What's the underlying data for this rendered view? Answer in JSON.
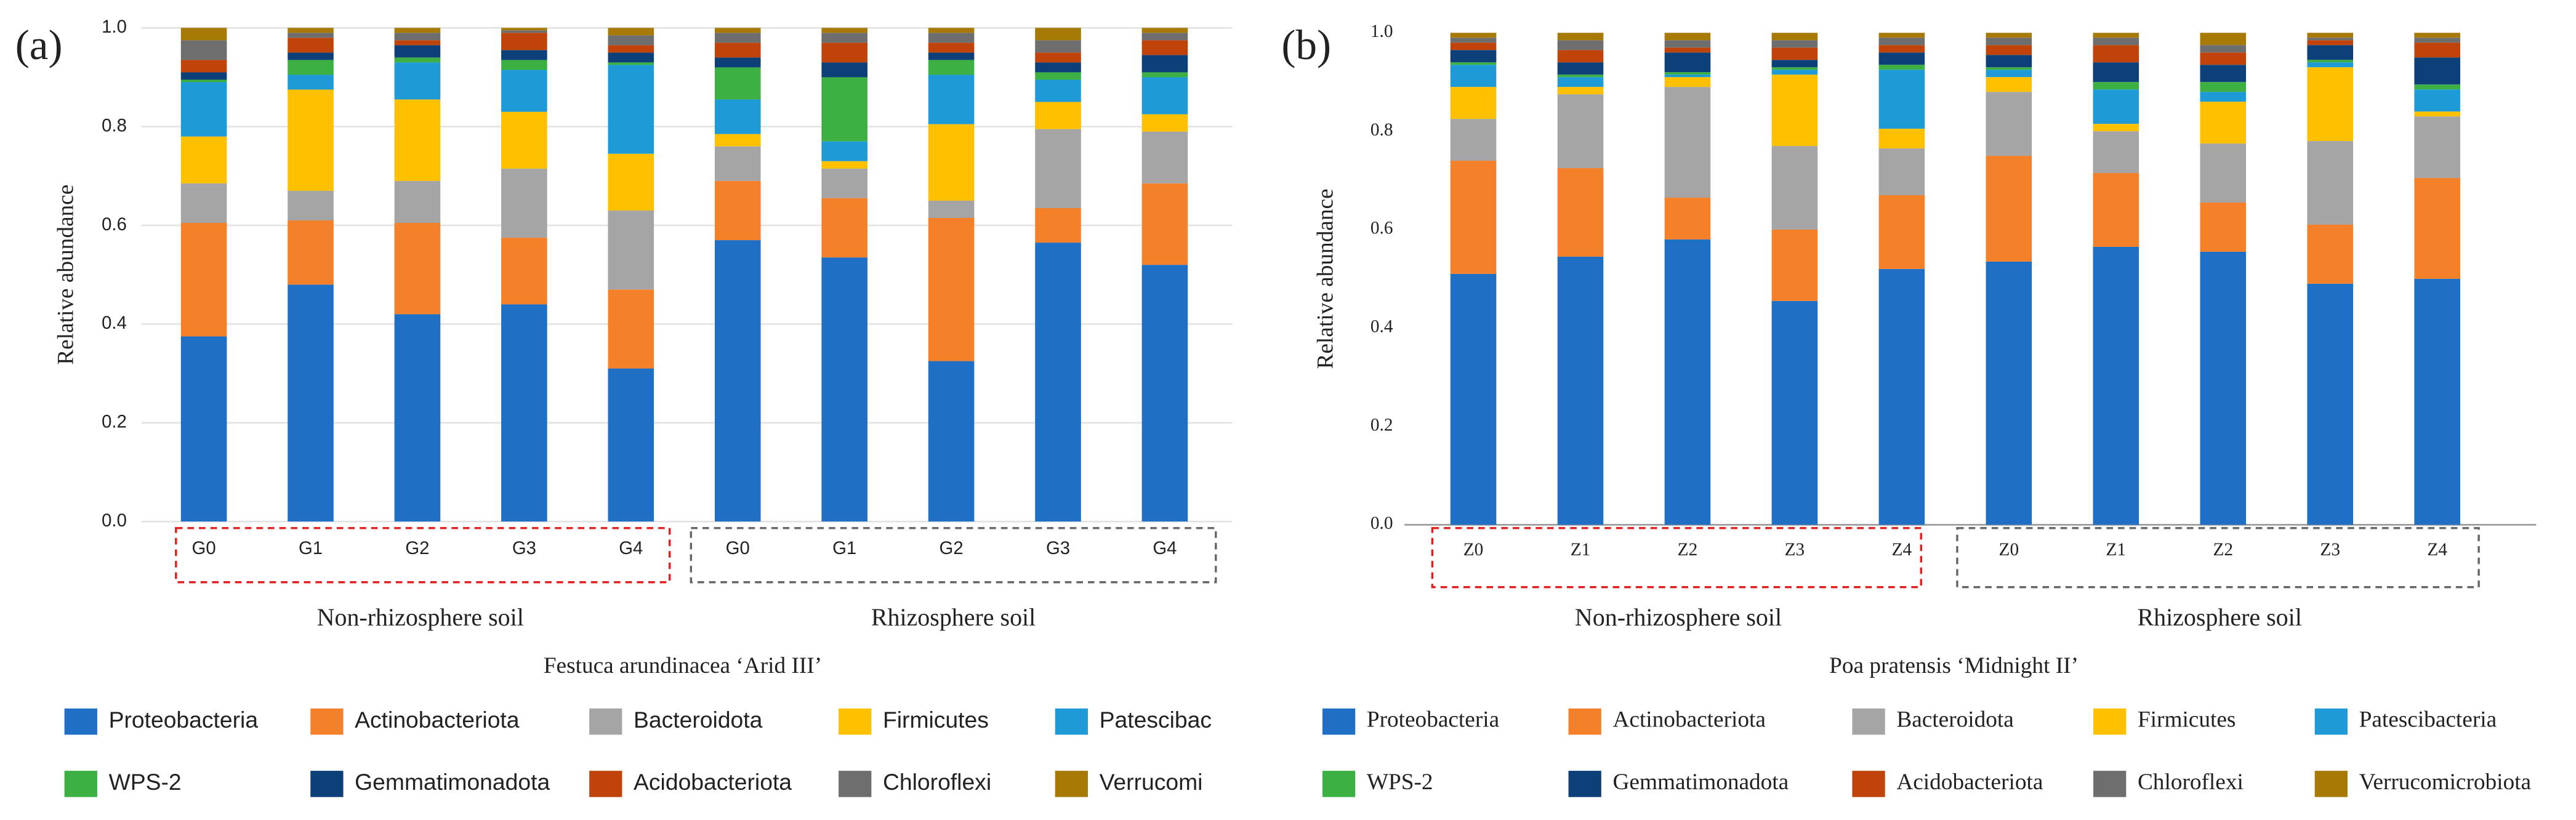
{
  "chart_data": [
    {
      "type": "bar",
      "stacked": true,
      "panel_label": "(a)",
      "y_label": "Relative abundance",
      "x_label": "Festuca arundinacea ‘Arid III’",
      "category_groups": [
        "Non-rhizosphere soil",
        "Rhizosphere soil"
      ],
      "categories": [
        "G0",
        "G1",
        "G2",
        "G3",
        "G4",
        "G0",
        "G1",
        "G2",
        "G3",
        "G4"
      ],
      "ylim": [
        0,
        1
      ],
      "yticks": [
        {
          "value": 0,
          "label": "0.0"
        },
        0.2,
        0.4,
        0.6,
        0.8,
        {
          "value": 1,
          "label": "1.0"
        }
      ],
      "grid": true,
      "series": [
        {
          "name": "Proteobacteria",
          "color": "#1f6fc5",
          "values": [
            0.375,
            0.48,
            0.42,
            0.44,
            0.31,
            0.57,
            0.535,
            0.325,
            0.565,
            0.52
          ]
        },
        {
          "name": "Actinobacteriota",
          "color": "#f4802a",
          "values": [
            0.23,
            0.13,
            0.185,
            0.135,
            0.16,
            0.12,
            0.12,
            0.29,
            0.07,
            0.165
          ]
        },
        {
          "name": "Bacteroidota",
          "color": "#a5a5a5",
          "values": [
            0.08,
            0.06,
            0.085,
            0.14,
            0.16,
            0.07,
            0.06,
            0.035,
            0.16,
            0.105
          ]
        },
        {
          "name": "Firmicutes",
          "color": "#ffc000",
          "values": [
            0.095,
            0.205,
            0.165,
            0.115,
            0.115,
            0.025,
            0.015,
            0.155,
            0.055,
            0.035
          ]
        },
        {
          "name": "Patescibac",
          "color": "#1e9bd7",
          "values": [
            0.11,
            0.03,
            0.075,
            0.085,
            0.18,
            0.07,
            0.04,
            0.1,
            0.045,
            0.075
          ]
        },
        {
          "name": "WPS-2",
          "color": "#3cb043",
          "values": [
            0.005,
            0.03,
            0.01,
            0.02,
            0.005,
            0.065,
            0.13,
            0.03,
            0.015,
            0.01
          ]
        },
        {
          "name": "Gemmatimonadota",
          "color": "#0d3f78",
          "values": [
            0.015,
            0.015,
            0.025,
            0.02,
            0.02,
            0.02,
            0.03,
            0.015,
            0.02,
            0.035
          ]
        },
        {
          "name": "Acidobacteriota",
          "color": "#c0440a",
          "values": [
            0.025,
            0.03,
            0.01,
            0.035,
            0.015,
            0.03,
            0.04,
            0.02,
            0.02,
            0.03
          ]
        },
        {
          "name": "Chloroflexi",
          "color": "#6e6e6e",
          "values": [
            0.04,
            0.01,
            0.015,
            0.005,
            0.02,
            0.02,
            0.02,
            0.02,
            0.025,
            0.015
          ]
        },
        {
          "name": "Verrucomi",
          "color": "#a77a05",
          "values": [
            0.025,
            0.01,
            0.01,
            0.005,
            0.015,
            0.01,
            0.01,
            0.01,
            0.025,
            0.01
          ]
        }
      ]
    },
    {
      "type": "bar",
      "stacked": true,
      "panel_label": "(b)",
      "y_label": "Relative abundance",
      "x_label": "Poa pratensis ‘Midnight II’",
      "category_groups": [
        "Non-rhizosphere soil",
        "Rhizosphere soil"
      ],
      "categories": [
        "Z0",
        "Z1",
        "Z2",
        "Z3",
        "Z4",
        "Z0",
        "Z1",
        "Z2",
        "Z3",
        "Z4"
      ],
      "ylim": [
        0,
        1
      ],
      "yticks": [
        {
          "value": 0,
          "label": "0.0"
        },
        0.2,
        0.4,
        0.6,
        0.8,
        {
          "value": 1,
          "label": "1.0"
        }
      ],
      "grid": false,
      "series": [
        {
          "name": "Proteobacteria",
          "color": "#1f6fc5",
          "values": [
            0.51,
            0.545,
            0.58,
            0.455,
            0.52,
            0.535,
            0.565,
            0.555,
            0.49,
            0.5
          ]
        },
        {
          "name": "Actinobacteriota",
          "color": "#f4802a",
          "values": [
            0.23,
            0.18,
            0.085,
            0.145,
            0.15,
            0.215,
            0.15,
            0.1,
            0.12,
            0.205
          ]
        },
        {
          "name": "Bacteroidota",
          "color": "#a5a5a5",
          "values": [
            0.085,
            0.15,
            0.225,
            0.17,
            0.095,
            0.13,
            0.085,
            0.12,
            0.17,
            0.125
          ]
        },
        {
          "name": "Firmicutes",
          "color": "#ffc000",
          "values": [
            0.065,
            0.015,
            0.02,
            0.145,
            0.04,
            0.03,
            0.015,
            0.085,
            0.15,
            0.01
          ]
        },
        {
          "name": "Patescibacteria",
          "color": "#1e9bd7",
          "values": [
            0.045,
            0.02,
            0.005,
            0.01,
            0.12,
            0.015,
            0.07,
            0.02,
            0.01,
            0.045
          ]
        },
        {
          "name": "WPS-2",
          "color": "#3cb043",
          "values": [
            0.005,
            0.005,
            0.005,
            0.005,
            0.01,
            0.005,
            0.015,
            0.02,
            0.005,
            0.01
          ]
        },
        {
          "name": "Gemmatimonadota",
          "color": "#0d3f78",
          "values": [
            0.025,
            0.025,
            0.04,
            0.015,
            0.025,
            0.025,
            0.04,
            0.035,
            0.03,
            0.055
          ]
        },
        {
          "name": "Acidobacteriota",
          "color": "#c0440a",
          "values": [
            0.015,
            0.025,
            0.01,
            0.025,
            0.015,
            0.02,
            0.035,
            0.025,
            0.01,
            0.03
          ]
        },
        {
          "name": "Chloroflexi",
          "color": "#6e6e6e",
          "values": [
            0.01,
            0.02,
            0.015,
            0.015,
            0.015,
            0.015,
            0.015,
            0.015,
            0.005,
            0.01
          ]
        },
        {
          "name": "Verrucomicrobiota",
          "color": "#a77a05",
          "values": [
            0.01,
            0.015,
            0.015,
            0.015,
            0.01,
            0.01,
            0.01,
            0.025,
            0.01,
            0.01
          ]
        }
      ]
    }
  ]
}
